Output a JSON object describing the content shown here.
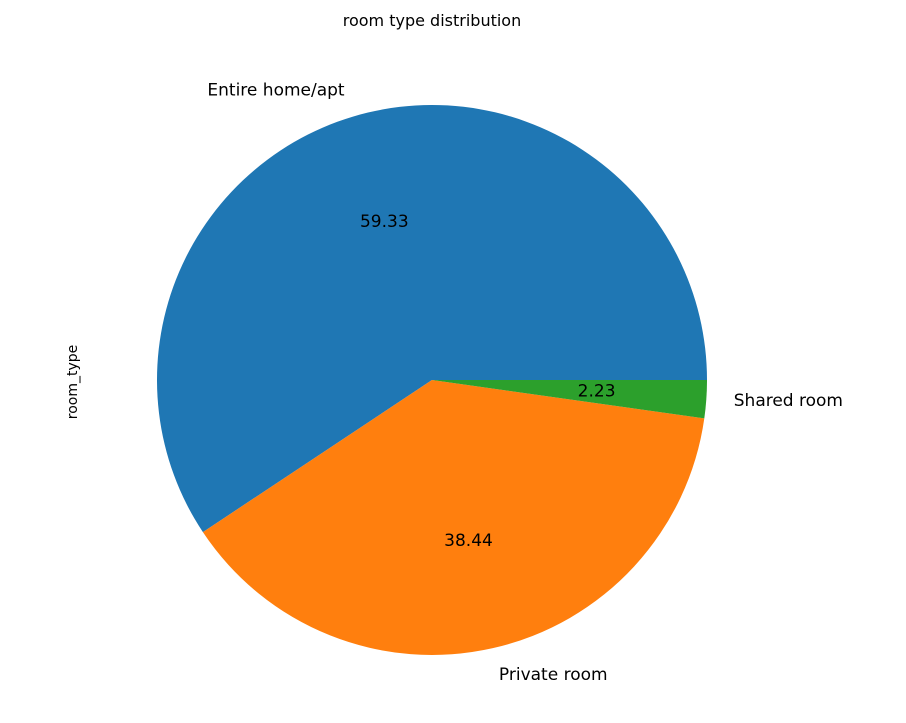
{
  "chart_data": {
    "type": "pie",
    "title": "room type distribution",
    "ylabel": "room_type",
    "categories": [
      "Entire home/apt",
      "Private room",
      "Shared room"
    ],
    "values": [
      59.33,
      38.44,
      2.23
    ],
    "value_labels": [
      "59.33",
      "38.44",
      "2.23"
    ],
    "colors": [
      "#1f77b4",
      "#ff7f0e",
      "#2ca02c"
    ],
    "start_angle": 0,
    "direction": "counterclockwise"
  }
}
